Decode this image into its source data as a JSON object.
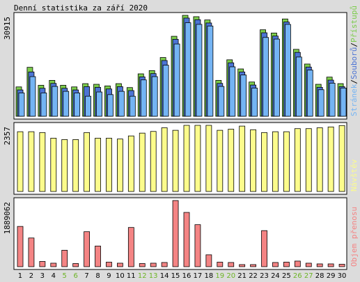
{
  "chart_data": {
    "type": "bar",
    "title": "Denní statistika za září 2020",
    "colors": {
      "hits": "#7ccc4c",
      "files": "#4c74d4",
      "pages": "#74b4f4",
      "visits": "#fcfc8c",
      "volume": "#f48484",
      "weekend_label": "#6cb424",
      "frame": "#000000",
      "plot_bg": "#ffffff",
      "outer_bg": "#dcdcdc"
    },
    "categories": [
      "1",
      "2",
      "3",
      "4",
      "5",
      "6",
      "7",
      "8",
      "9",
      "10",
      "11",
      "12",
      "13",
      "14",
      "15",
      "16",
      "17",
      "18",
      "19",
      "20",
      "21",
      "22",
      "23",
      "24",
      "25",
      "26",
      "27",
      "28",
      "29",
      "30"
    ],
    "weekend_days": [
      "5",
      "6",
      "12",
      "13",
      "19",
      "20",
      "26",
      "27"
    ],
    "panels": [
      {
        "id": "requests",
        "ymax": 30915,
        "ymax_label": "30915",
        "legend": [
          "Přístupů",
          "Souborů",
          "Stránek"
        ],
        "series": [
          {
            "name": "Přístupů",
            "values": [
              9000,
              15000,
              9500,
              11000,
              9500,
              9000,
              10000,
              9800,
              9300,
              10000,
              8800,
              13000,
              14000,
              18000,
              24500,
              30915,
              30500,
              29500,
              11000,
              17300,
              14500,
              10500,
              26500,
              25500,
              29800,
              20500,
              16000,
              9800,
              12000,
              10000
            ]
          },
          {
            "name": "Souborů",
            "values": [
              8500,
              14000,
              9000,
              10500,
              9000,
              8500,
              9500,
              9300,
              8800,
              9500,
              8300,
              12500,
              13500,
              17500,
              24000,
              30500,
              30000,
              29000,
              10500,
              16800,
              14000,
              10000,
              26000,
              25000,
              29300,
              20000,
              15500,
              9300,
              11500,
              9500
            ]
          },
          {
            "name": "Stránek",
            "values": [
              8000,
              13000,
              8000,
              10000,
              8500,
              8000,
              7000,
              8300,
              7500,
              8500,
              7000,
              12000,
              13000,
              16500,
              23000,
              29500,
              29000,
              28500,
              10000,
              16000,
              13500,
              9500,
              25000,
              24500,
              29000,
              19000,
              15000,
              9000,
              11000,
              9500
            ]
          }
        ]
      },
      {
        "id": "visits",
        "ymax": 2357,
        "ymax_label": "2357",
        "legend": [
          "Návštěv"
        ],
        "series": [
          {
            "name": "Návštěv",
            "values": [
              2130,
              2130,
              2100,
              1900,
              1850,
              1850,
              2100,
              1900,
              1900,
              1870,
              1980,
              2080,
              2140,
              2270,
              2180,
              2357,
              2357,
              2357,
              2180,
              2220,
              2330,
              2200,
              2100,
              2130,
              2130,
              2240,
              2240,
              2270,
              2300,
              2350
            ]
          }
        ]
      },
      {
        "id": "volume",
        "ymax": 1889062,
        "ymax_label": "1889062",
        "legend": [
          "Objem přenosu"
        ],
        "series": [
          {
            "name": "Objem přenosu",
            "values": [
              1150000,
              820000,
              150000,
              100000,
              470000,
              90000,
              1000000,
              590000,
              130000,
              100000,
              1120000,
              90000,
              100000,
              120000,
              1889062,
              1550000,
              1200000,
              340000,
              130000,
              120000,
              60000,
              60000,
              1030000,
              120000,
              130000,
              160000,
              100000,
              80000,
              80000,
              70000
            ]
          }
        ]
      }
    ]
  }
}
